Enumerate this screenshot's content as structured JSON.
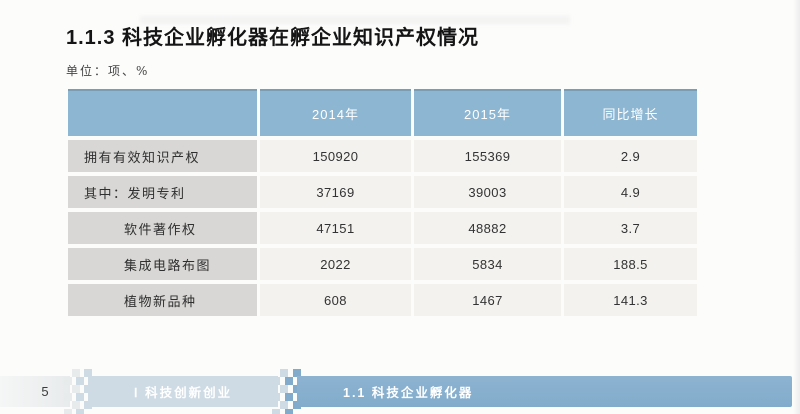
{
  "page": {
    "title": "1.1.3 科技企业孵化器在孵企业知识产权情况",
    "unit_label": "单位：项、%"
  },
  "table": {
    "headers": {
      "year_2014": "2014年",
      "year_2015": "2015年",
      "growth": "同比增长"
    },
    "rows": [
      {
        "label": "拥有有效知识产权",
        "v2014": "150920",
        "v2015": "155369",
        "growth": "2.9"
      },
      {
        "label": "其中：发明专利",
        "v2014": "37169",
        "v2015": "39003",
        "growth": "4.9"
      },
      {
        "label": "软件著作权",
        "v2014": "47151",
        "v2015": "48882",
        "growth": "3.7"
      },
      {
        "label": "集成电路布图",
        "v2014": "2022",
        "v2015": "5834",
        "growth": "188.5"
      },
      {
        "label": "植物新品种",
        "v2014": "608",
        "v2015": "1467",
        "growth": "141.3"
      }
    ]
  },
  "footer": {
    "page_number": "5",
    "part_label": "Ⅰ 科技创新创业",
    "section_label": "1.1 科技企业孵化器"
  },
  "colors": {
    "table_header_blue": "#8db6d2",
    "table_header_border": "#7b9db3",
    "row_label_grey": "#d8d7d5",
    "data_cell_bg": "#f3f2ef",
    "footer_left_grey": "#e8ebec",
    "footer_mid_blue": "#cfdbe4",
    "footer_right_blue": "#82abcb"
  }
}
